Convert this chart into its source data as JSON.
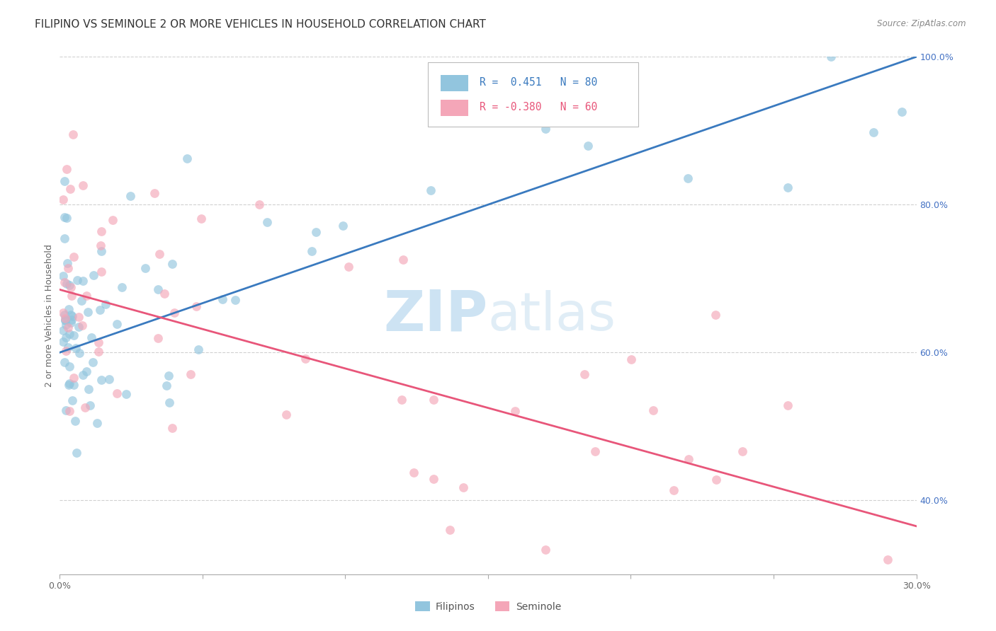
{
  "title": "FILIPINO VS SEMINOLE 2 OR MORE VEHICLES IN HOUSEHOLD CORRELATION CHART",
  "source": "Source: ZipAtlas.com",
  "ylabel": "2 or more Vehicles in Household",
  "xmin": 0.0,
  "xmax": 0.3,
  "ymin": 0.3,
  "ymax": 1.0,
  "xtick_positions": [
    0.0,
    0.05,
    0.1,
    0.15,
    0.2,
    0.25,
    0.3
  ],
  "xtick_labels": [
    "0.0%",
    "",
    "",
    "",
    "",
    "",
    "30.0%"
  ],
  "ytick_positions": [
    0.4,
    0.6,
    0.8,
    1.0
  ],
  "ytick_labels": [
    "40.0%",
    "60.0%",
    "80.0%",
    "100.0%"
  ],
  "blue_color": "#92c5de",
  "pink_color": "#f4a6b8",
  "blue_line_color": "#3a7abf",
  "pink_line_color": "#e8567a",
  "watermark_zip": "ZIP",
  "watermark_atlas": "atlas",
  "blue_line_x": [
    0.0,
    0.3
  ],
  "blue_line_y": [
    0.6,
    1.0
  ],
  "pink_line_x": [
    0.0,
    0.3
  ],
  "pink_line_y": [
    0.685,
    0.365
  ],
  "grid_color": "#d0d0d0",
  "background_color": "#ffffff",
  "tick_color_right": "#4472c4",
  "title_fontsize": 11,
  "axis_label_fontsize": 9,
  "tick_fontsize": 9,
  "legend_fontsize": 11,
  "legend_r_blue": "R =  0.451",
  "legend_n_blue": "N = 80",
  "legend_r_pink": "R = -0.380",
  "legend_n_pink": "N = 60"
}
